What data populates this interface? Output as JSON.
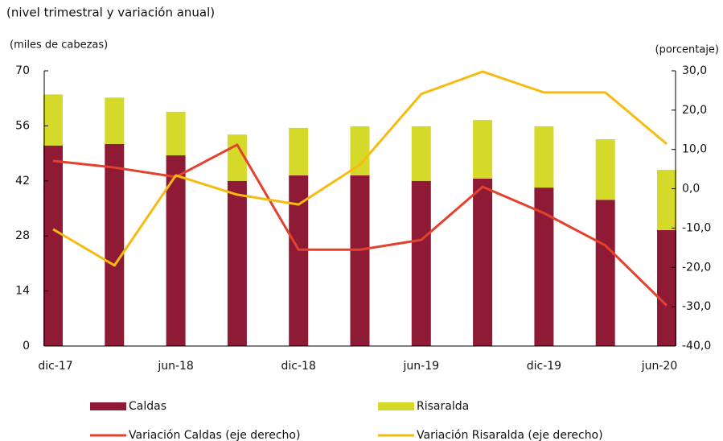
{
  "chart_data": {
    "type": "bar",
    "subtitle": "(nivel trimestral y variación anual)",
    "ylabel": "(miles de cabezas)",
    "y2label": "(porcentaje)",
    "categories": [
      "dic-17",
      null,
      "jun-18",
      null,
      "dic-18",
      null,
      "jun-19",
      null,
      "dic-19",
      null,
      "jun-20"
    ],
    "series": [
      {
        "name": "Caldas",
        "type": "bar",
        "color": "#8e1a36",
        "values": [
          51,
          51.4,
          48.5,
          42,
          43.4,
          43.4,
          42,
          42.6,
          40.3,
          37.2,
          29.5
        ]
      },
      {
        "name": "Risaralda",
        "type": "bar",
        "color": "#d4d92a",
        "values": [
          13,
          11.8,
          11.1,
          11.8,
          12.1,
          12.5,
          13.9,
          14.9,
          15.6,
          15.4,
          15.3
        ]
      },
      {
        "name": "Variación Caldas (eje derecho)",
        "type": "line",
        "axis": "y2",
        "color": "#e4412c",
        "values": [
          7.1,
          5.4,
          3,
          11.2,
          -15.5,
          -15.5,
          -13,
          0.5,
          -6.2,
          -14.4,
          -29.7
        ]
      },
      {
        "name": "Variación Risaralda (eje derecho)",
        "type": "line",
        "axis": "y2",
        "color": "#f5bb10",
        "values": [
          -10.3,
          -19.5,
          3.4,
          -1.5,
          -4,
          6.1,
          24.1,
          29.8,
          24.5,
          24.5,
          11.4
        ]
      }
    ],
    "stacked": true,
    "ylim": [
      0,
      70
    ],
    "yticks": [
      0,
      14,
      28,
      42,
      56,
      70
    ],
    "y2lim": [
      -40,
      30
    ],
    "y2ticks": [
      {
        "value": -40,
        "label": "-40,0"
      },
      {
        "value": -30,
        "label": "-30,0"
      },
      {
        "value": -20,
        "label": "-20,0"
      },
      {
        "value": -10,
        "label": "-10,0"
      },
      {
        "value": 0,
        "label": "0,0"
      },
      {
        "value": 10,
        "label": "10,0"
      },
      {
        "value": 20,
        "label": "20,0"
      },
      {
        "value": 30,
        "label": "30,0"
      }
    ],
    "legend": "bottom"
  }
}
